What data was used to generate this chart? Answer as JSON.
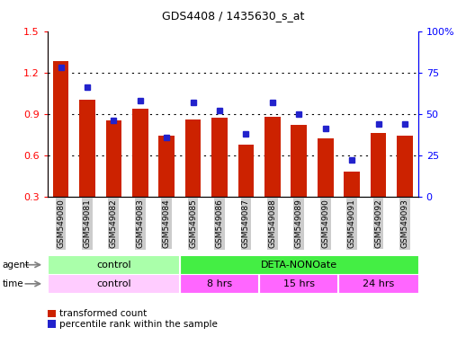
{
  "title": "GDS4408 / 1435630_s_at",
  "samples": [
    "GSM549080",
    "GSM549081",
    "GSM549082",
    "GSM549083",
    "GSM549084",
    "GSM549085",
    "GSM549086",
    "GSM549087",
    "GSM549088",
    "GSM549089",
    "GSM549090",
    "GSM549091",
    "GSM549092",
    "GSM549093"
  ],
  "red_values": [
    1.28,
    1.0,
    0.85,
    0.94,
    0.74,
    0.86,
    0.87,
    0.68,
    0.88,
    0.82,
    0.72,
    0.48,
    0.76,
    0.74
  ],
  "blue_pct": [
    78,
    66,
    46,
    58,
    36,
    57,
    52,
    38,
    57,
    50,
    41,
    22,
    44,
    44
  ],
  "ylim_left": [
    0.3,
    1.5
  ],
  "ylim_right": [
    0,
    100
  ],
  "yticks_left": [
    0.3,
    0.6,
    0.9,
    1.2,
    1.5
  ],
  "yticks_right": [
    0,
    25,
    50,
    75,
    100
  ],
  "ytick_labels_right": [
    "0",
    "25",
    "50",
    "75",
    "100%"
  ],
  "bar_color": "#CC2200",
  "blue_color": "#2222CC",
  "agent_control_color": "#AAFFAA",
  "agent_deta_color": "#44EE44",
  "time_control_color": "#FFCCFF",
  "time_8hrs_color": "#FF66FF",
  "time_15hrs_color": "#FF66FF",
  "time_24hrs_color": "#FF66FF",
  "agent_control_label": "control",
  "agent_deta_label": "DETA-NONOate",
  "time_control_label": "control",
  "time_8hrs_label": "8 hrs",
  "time_15hrs_label": "15 hrs",
  "time_24hrs_label": "24 hrs",
  "agent_label": "agent",
  "time_label": "time",
  "legend_red": "transformed count",
  "legend_blue": "percentile rank within the sample",
  "background_color": "#FFFFFF",
  "tick_bg_color": "#CCCCCC",
  "n_control": 5,
  "n_8hrs": 3,
  "n_15hrs": 3,
  "n_24hrs": 3
}
